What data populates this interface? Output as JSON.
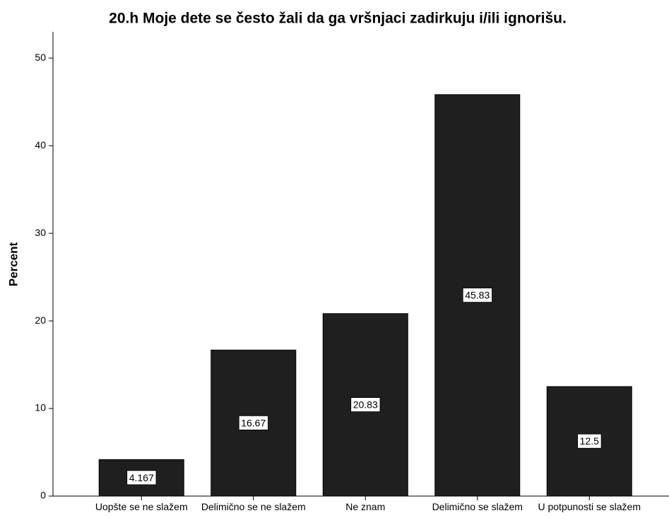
{
  "chart_data": {
    "type": "bar",
    "title": "20.h Moje dete se često žali da ga vršnjaci zadirkuju i/ili ignorišu.",
    "y_label": "Percent",
    "categories": [
      "Uopšte se ne slažem",
      "Delimično se ne slažem",
      "Ne znam",
      "Delimično se slažem",
      "U potpunosti se slažem"
    ],
    "values": [
      4.167,
      16.67,
      20.83,
      45.83,
      12.5
    ],
    "color": "#1f1f1f",
    "ylim": [
      0,
      53
    ],
    "yticks": [
      0,
      10,
      20,
      30,
      40,
      50
    ],
    "grid": false
  }
}
